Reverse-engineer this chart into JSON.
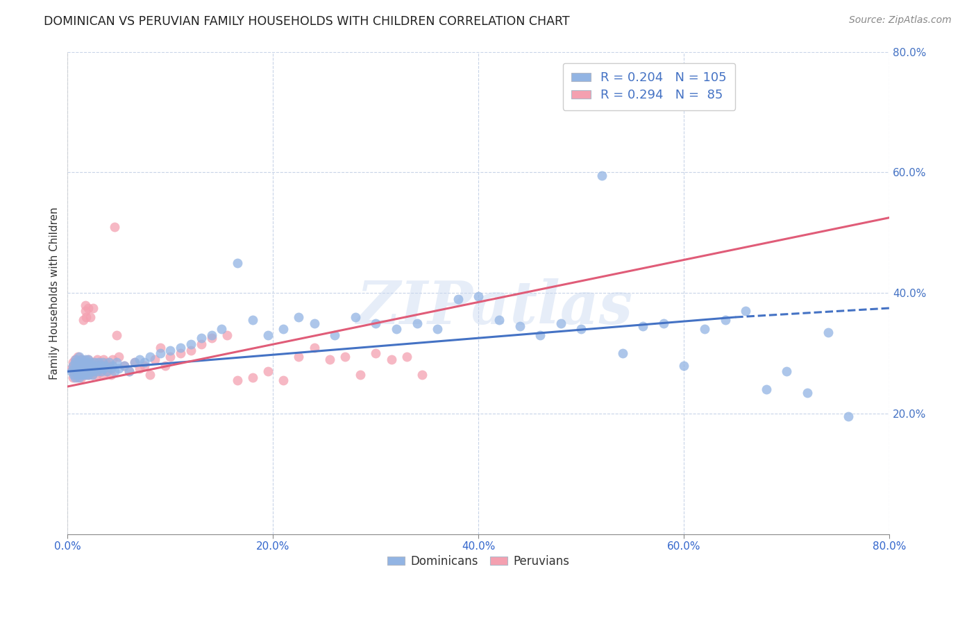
{
  "title": "DOMINICAN VS PERUVIAN FAMILY HOUSEHOLDS WITH CHILDREN CORRELATION CHART",
  "source": "Source: ZipAtlas.com",
  "ylabel": "Family Households with Children",
  "dominican_R": "0.204",
  "dominican_N": "105",
  "peruvian_R": "0.294",
  "peruvian_N": "85",
  "dominican_color": "#92b4e3",
  "peruvian_color": "#f4a0b0",
  "dominican_line_color": "#4472c4",
  "peruvian_line_color": "#e05c78",
  "watermark": "ZIPatlas",
  "background_color": "#ffffff",
  "grid_color": "#c8d4e8",
  "xlim": [
    0,
    0.8
  ],
  "ylim": [
    0,
    0.8
  ],
  "dom_line_solid_end": 0.65,
  "dom_line_start_y": 0.27,
  "dom_line_end_y": 0.36,
  "dom_line_dash_end_y": 0.375,
  "per_line_start_y": 0.245,
  "per_line_end_y": 0.525,
  "dominican_x": [
    0.004,
    0.005,
    0.006,
    0.006,
    0.007,
    0.007,
    0.008,
    0.009,
    0.01,
    0.01,
    0.01,
    0.011,
    0.011,
    0.011,
    0.012,
    0.012,
    0.012,
    0.013,
    0.013,
    0.013,
    0.014,
    0.014,
    0.015,
    0.015,
    0.015,
    0.016,
    0.016,
    0.017,
    0.017,
    0.018,
    0.018,
    0.019,
    0.019,
    0.02,
    0.02,
    0.021,
    0.022,
    0.022,
    0.023,
    0.024,
    0.025,
    0.025,
    0.026,
    0.027,
    0.028,
    0.029,
    0.03,
    0.031,
    0.032,
    0.033,
    0.034,
    0.035,
    0.036,
    0.038,
    0.04,
    0.042,
    0.044,
    0.046,
    0.048,
    0.05,
    0.055,
    0.06,
    0.065,
    0.07,
    0.075,
    0.08,
    0.09,
    0.1,
    0.11,
    0.12,
    0.13,
    0.14,
    0.15,
    0.165,
    0.18,
    0.195,
    0.21,
    0.225,
    0.24,
    0.26,
    0.28,
    0.3,
    0.32,
    0.34,
    0.36,
    0.38,
    0.4,
    0.42,
    0.44,
    0.46,
    0.48,
    0.5,
    0.52,
    0.54,
    0.56,
    0.58,
    0.6,
    0.62,
    0.64,
    0.66,
    0.68,
    0.7,
    0.72,
    0.74,
    0.76
  ],
  "dominican_y": [
    0.27,
    0.28,
    0.265,
    0.275,
    0.285,
    0.26,
    0.29,
    0.275,
    0.285,
    0.27,
    0.265,
    0.28,
    0.295,
    0.26,
    0.27,
    0.285,
    0.275,
    0.265,
    0.28,
    0.29,
    0.27,
    0.28,
    0.275,
    0.265,
    0.285,
    0.27,
    0.28,
    0.265,
    0.29,
    0.275,
    0.285,
    0.27,
    0.28,
    0.265,
    0.29,
    0.275,
    0.285,
    0.27,
    0.28,
    0.265,
    0.28,
    0.27,
    0.285,
    0.275,
    0.28,
    0.27,
    0.285,
    0.275,
    0.28,
    0.27,
    0.285,
    0.275,
    0.28,
    0.27,
    0.285,
    0.275,
    0.28,
    0.27,
    0.285,
    0.275,
    0.28,
    0.27,
    0.285,
    0.29,
    0.285,
    0.295,
    0.3,
    0.305,
    0.31,
    0.315,
    0.325,
    0.33,
    0.34,
    0.45,
    0.355,
    0.33,
    0.34,
    0.36,
    0.35,
    0.33,
    0.36,
    0.35,
    0.34,
    0.35,
    0.34,
    0.39,
    0.395,
    0.355,
    0.345,
    0.33,
    0.35,
    0.34,
    0.595,
    0.3,
    0.345,
    0.35,
    0.28,
    0.34,
    0.355,
    0.37,
    0.24,
    0.27,
    0.235,
    0.335,
    0.195
  ],
  "peruvian_x": [
    0.004,
    0.005,
    0.005,
    0.006,
    0.006,
    0.007,
    0.007,
    0.008,
    0.008,
    0.009,
    0.009,
    0.01,
    0.01,
    0.011,
    0.011,
    0.012,
    0.012,
    0.013,
    0.013,
    0.014,
    0.014,
    0.015,
    0.015,
    0.016,
    0.016,
    0.017,
    0.017,
    0.018,
    0.019,
    0.02,
    0.02,
    0.021,
    0.022,
    0.022,
    0.023,
    0.024,
    0.025,
    0.025,
    0.026,
    0.027,
    0.028,
    0.029,
    0.03,
    0.031,
    0.032,
    0.033,
    0.034,
    0.035,
    0.036,
    0.037,
    0.038,
    0.04,
    0.042,
    0.044,
    0.046,
    0.048,
    0.05,
    0.055,
    0.06,
    0.065,
    0.07,
    0.075,
    0.08,
    0.085,
    0.09,
    0.095,
    0.1,
    0.11,
    0.12,
    0.13,
    0.14,
    0.155,
    0.165,
    0.18,
    0.195,
    0.21,
    0.225,
    0.24,
    0.255,
    0.27,
    0.285,
    0.3,
    0.315,
    0.33,
    0.345
  ],
  "peruvian_y": [
    0.275,
    0.26,
    0.285,
    0.27,
    0.28,
    0.265,
    0.29,
    0.275,
    0.285,
    0.27,
    0.26,
    0.28,
    0.295,
    0.265,
    0.275,
    0.285,
    0.27,
    0.26,
    0.28,
    0.29,
    0.27,
    0.355,
    0.265,
    0.275,
    0.285,
    0.38,
    0.37,
    0.36,
    0.265,
    0.29,
    0.375,
    0.265,
    0.28,
    0.36,
    0.275,
    0.265,
    0.285,
    0.375,
    0.27,
    0.28,
    0.265,
    0.29,
    0.275,
    0.285,
    0.27,
    0.28,
    0.265,
    0.29,
    0.275,
    0.285,
    0.27,
    0.28,
    0.265,
    0.29,
    0.51,
    0.33,
    0.295,
    0.28,
    0.27,
    0.285,
    0.275,
    0.28,
    0.265,
    0.29,
    0.31,
    0.28,
    0.295,
    0.3,
    0.305,
    0.315,
    0.325,
    0.33,
    0.255,
    0.26,
    0.27,
    0.255,
    0.295,
    0.31,
    0.29,
    0.295,
    0.265,
    0.3,
    0.29,
    0.295,
    0.265
  ]
}
